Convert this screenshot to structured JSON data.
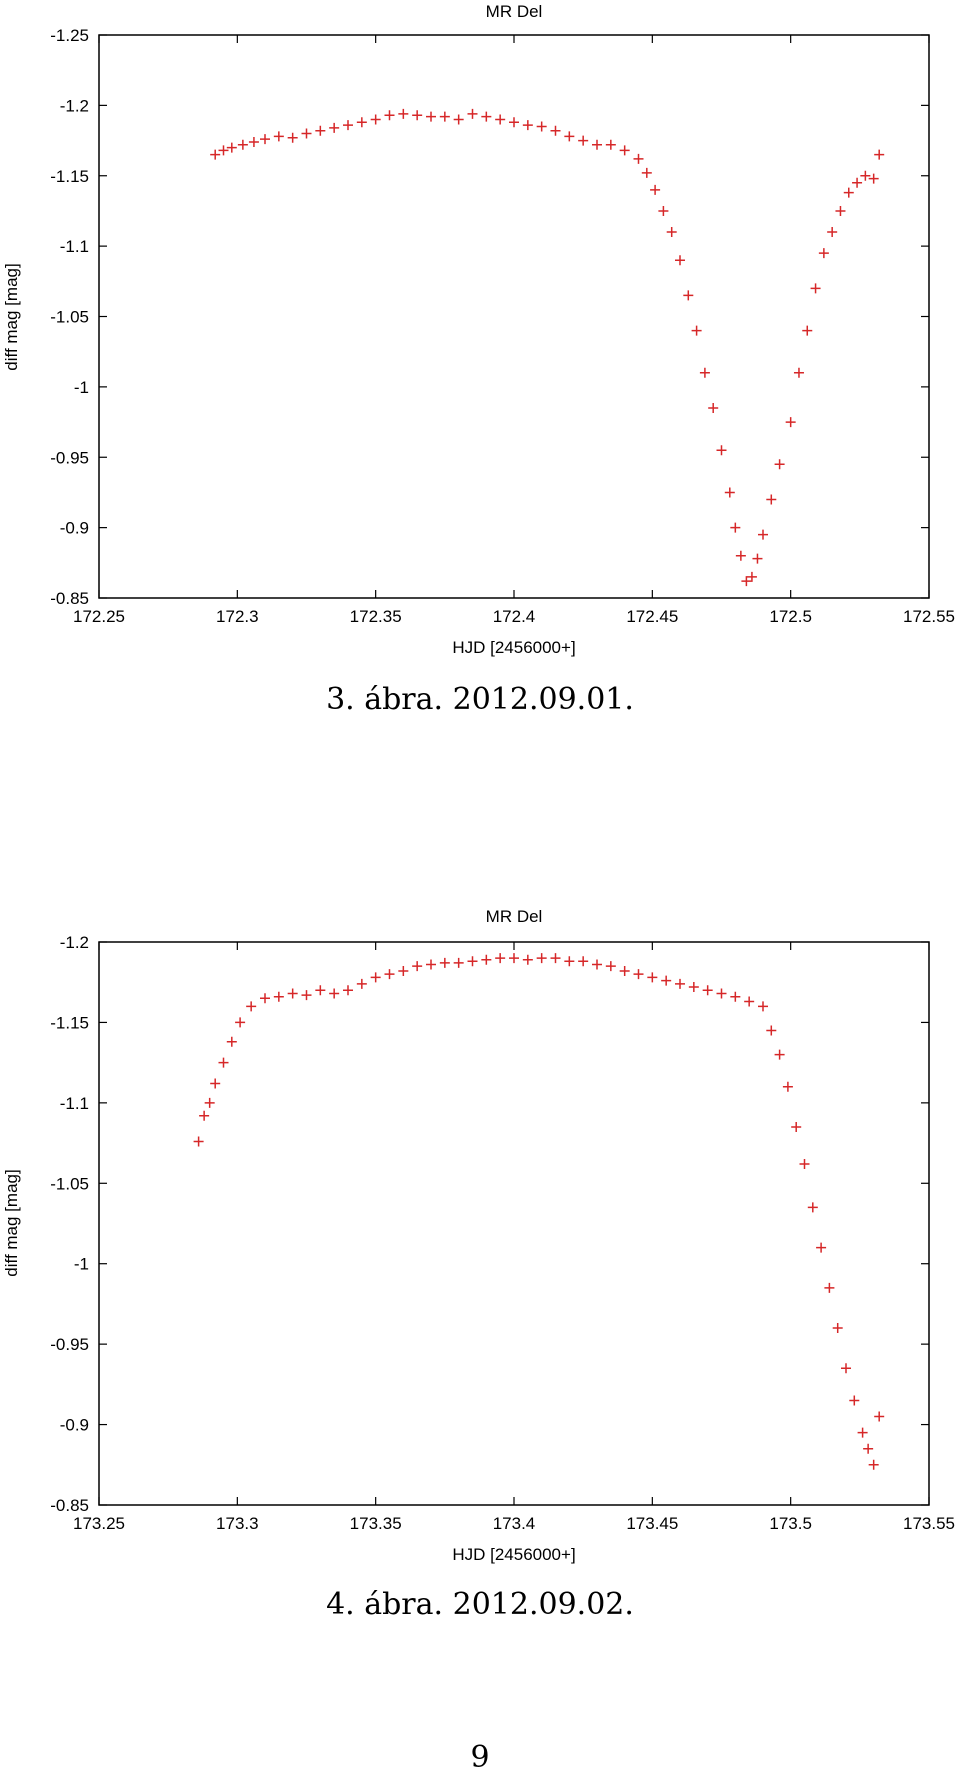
{
  "charts": [
    {
      "caption": "3. ábra. 2012.09.01.",
      "chart_data": {
        "type": "scatter",
        "title": "MR Del",
        "xlabel": "HJD [2456000+]",
        "ylabel": "diff mag [mag]",
        "xlim": [
          172.25,
          172.55
        ],
        "ylim": [
          -1.25,
          -0.85
        ],
        "y_inverted": true,
        "grid": false,
        "marker": "+",
        "color": "#d62728",
        "xticks": [
          "172.25",
          "172.3",
          "172.35",
          "172.4",
          "172.45",
          "172.5",
          "172.55"
        ],
        "yticks": [
          "-1.25",
          "-1.2",
          "-1.15",
          "-1.1",
          "-1.05",
          "-1",
          "-0.95",
          "-0.9",
          "-0.85"
        ],
        "points": [
          [
            172.292,
            -1.165
          ],
          [
            172.295,
            -1.168
          ],
          [
            172.298,
            -1.17
          ],
          [
            172.302,
            -1.172
          ],
          [
            172.306,
            -1.174
          ],
          [
            172.31,
            -1.176
          ],
          [
            172.315,
            -1.178
          ],
          [
            172.32,
            -1.177
          ],
          [
            172.325,
            -1.18
          ],
          [
            172.33,
            -1.182
          ],
          [
            172.335,
            -1.184
          ],
          [
            172.34,
            -1.186
          ],
          [
            172.345,
            -1.188
          ],
          [
            172.35,
            -1.19
          ],
          [
            172.355,
            -1.193
          ],
          [
            172.36,
            -1.194
          ],
          [
            172.365,
            -1.193
          ],
          [
            172.37,
            -1.192
          ],
          [
            172.375,
            -1.192
          ],
          [
            172.38,
            -1.19
          ],
          [
            172.385,
            -1.194
          ],
          [
            172.39,
            -1.192
          ],
          [
            172.395,
            -1.19
          ],
          [
            172.4,
            -1.188
          ],
          [
            172.405,
            -1.186
          ],
          [
            172.41,
            -1.185
          ],
          [
            172.415,
            -1.182
          ],
          [
            172.42,
            -1.178
          ],
          [
            172.425,
            -1.175
          ],
          [
            172.43,
            -1.172
          ],
          [
            172.435,
            -1.172
          ],
          [
            172.44,
            -1.168
          ],
          [
            172.445,
            -1.162
          ],
          [
            172.448,
            -1.152
          ],
          [
            172.451,
            -1.14
          ],
          [
            172.454,
            -1.125
          ],
          [
            172.457,
            -1.11
          ],
          [
            172.46,
            -1.09
          ],
          [
            172.463,
            -1.065
          ],
          [
            172.466,
            -1.04
          ],
          [
            172.469,
            -1.01
          ],
          [
            172.472,
            -0.985
          ],
          [
            172.475,
            -0.955
          ],
          [
            172.478,
            -0.925
          ],
          [
            172.48,
            -0.9
          ],
          [
            172.482,
            -0.88
          ],
          [
            172.484,
            -0.862
          ],
          [
            172.486,
            -0.865
          ],
          [
            172.488,
            -0.878
          ],
          [
            172.49,
            -0.895
          ],
          [
            172.493,
            -0.92
          ],
          [
            172.496,
            -0.945
          ],
          [
            172.5,
            -0.975
          ],
          [
            172.503,
            -1.01
          ],
          [
            172.506,
            -1.04
          ],
          [
            172.509,
            -1.07
          ],
          [
            172.512,
            -1.095
          ],
          [
            172.515,
            -1.11
          ],
          [
            172.518,
            -1.125
          ],
          [
            172.521,
            -1.138
          ],
          [
            172.524,
            -1.145
          ],
          [
            172.527,
            -1.15
          ],
          [
            172.53,
            -1.148
          ],
          [
            172.532,
            -1.165
          ]
        ]
      }
    },
    {
      "caption": "4. ábra. 2012.09.02.",
      "chart_data": {
        "type": "scatter",
        "title": "MR Del",
        "xlabel": "HJD [2456000+]",
        "ylabel": "diff mag [mag]",
        "xlim": [
          173.25,
          173.55
        ],
        "ylim": [
          -1.2,
          -0.85
        ],
        "y_inverted": true,
        "grid": false,
        "marker": "+",
        "color": "#d62728",
        "xticks": [
          "173.25",
          "173.3",
          "173.35",
          "173.4",
          "173.45",
          "173.5",
          "173.55"
        ],
        "yticks": [
          "-1.2",
          "-1.15",
          "-1.1",
          "-1.05",
          "-1",
          "-0.95",
          "-0.9",
          "-0.85"
        ],
        "points": [
          [
            173.286,
            -1.076
          ],
          [
            173.288,
            -1.092
          ],
          [
            173.29,
            -1.1
          ],
          [
            173.292,
            -1.112
          ],
          [
            173.295,
            -1.125
          ],
          [
            173.298,
            -1.138
          ],
          [
            173.301,
            -1.15
          ],
          [
            173.305,
            -1.16
          ],
          [
            173.31,
            -1.165
          ],
          [
            173.315,
            -1.166
          ],
          [
            173.32,
            -1.168
          ],
          [
            173.325,
            -1.167
          ],
          [
            173.33,
            -1.17
          ],
          [
            173.335,
            -1.168
          ],
          [
            173.34,
            -1.17
          ],
          [
            173.345,
            -1.174
          ],
          [
            173.35,
            -1.178
          ],
          [
            173.355,
            -1.18
          ],
          [
            173.36,
            -1.182
          ],
          [
            173.365,
            -1.185
          ],
          [
            173.37,
            -1.186
          ],
          [
            173.375,
            -1.187
          ],
          [
            173.38,
            -1.187
          ],
          [
            173.385,
            -1.188
          ],
          [
            173.39,
            -1.189
          ],
          [
            173.395,
            -1.19
          ],
          [
            173.4,
            -1.19
          ],
          [
            173.405,
            -1.189
          ],
          [
            173.41,
            -1.19
          ],
          [
            173.415,
            -1.19
          ],
          [
            173.42,
            -1.188
          ],
          [
            173.425,
            -1.188
          ],
          [
            173.43,
            -1.186
          ],
          [
            173.435,
            -1.185
          ],
          [
            173.44,
            -1.182
          ],
          [
            173.445,
            -1.18
          ],
          [
            173.45,
            -1.178
          ],
          [
            173.455,
            -1.176
          ],
          [
            173.46,
            -1.174
          ],
          [
            173.465,
            -1.172
          ],
          [
            173.47,
            -1.17
          ],
          [
            173.475,
            -1.168
          ],
          [
            173.48,
            -1.166
          ],
          [
            173.485,
            -1.163
          ],
          [
            173.49,
            -1.16
          ],
          [
            173.493,
            -1.145
          ],
          [
            173.496,
            -1.13
          ],
          [
            173.499,
            -1.11
          ],
          [
            173.502,
            -1.085
          ],
          [
            173.505,
            -1.062
          ],
          [
            173.508,
            -1.035
          ],
          [
            173.511,
            -1.01
          ],
          [
            173.514,
            -0.985
          ],
          [
            173.517,
            -0.96
          ],
          [
            173.52,
            -0.935
          ],
          [
            173.523,
            -0.915
          ],
          [
            173.526,
            -0.895
          ],
          [
            173.528,
            -0.885
          ],
          [
            173.53,
            -0.875
          ],
          [
            173.532,
            -0.905
          ]
        ]
      }
    }
  ],
  "page_number": "9"
}
